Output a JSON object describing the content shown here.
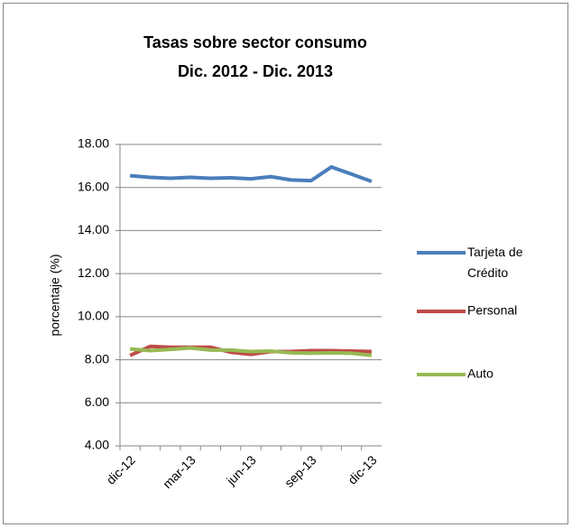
{
  "chart_data": {
    "type": "line",
    "title": "Tasas sobre sector consumo",
    "subtitle": "Dic. 2012 - Dic. 2013",
    "y_label": "porcentaje (%)",
    "categories": [
      "dic-12",
      null,
      null,
      "mar-13",
      null,
      null,
      "jun-13",
      null,
      null,
      "sep-13",
      null,
      null,
      "dic-13"
    ],
    "series": [
      {
        "name": "Tarjeta de Crédito",
        "color": "#4a7ebb",
        "values": [
          16.55,
          16.47,
          16.43,
          16.47,
          16.43,
          16.45,
          16.4,
          16.5,
          16.35,
          16.32,
          16.95,
          16.62,
          16.28
        ]
      },
      {
        "name": "Personal",
        "color": "#be4b48",
        "values": [
          8.2,
          8.62,
          8.58,
          8.58,
          8.58,
          8.35,
          8.25,
          8.38,
          8.38,
          8.42,
          8.42,
          8.4,
          8.38
        ]
      },
      {
        "name": "Auto",
        "color": "#98b954",
        "values": [
          8.5,
          8.42,
          8.48,
          8.55,
          8.45,
          8.45,
          8.38,
          8.4,
          8.32,
          8.3,
          8.32,
          8.3,
          8.2
        ]
      }
    ],
    "ylim": [
      4,
      18
    ],
    "yticks": [
      {
        "value": 4,
        "label": "4.00"
      },
      {
        "value": 6,
        "label": "6.00"
      },
      {
        "value": 8,
        "label": "8.00"
      },
      {
        "value": 10,
        "label": "10.00"
      },
      {
        "value": 12,
        "label": "12.00"
      },
      {
        "value": 14,
        "label": "14.00"
      },
      {
        "value": 16,
        "label": "16.00"
      },
      {
        "value": 18,
        "label": "18.00"
      }
    ],
    "grid": true,
    "legend": "right"
  }
}
